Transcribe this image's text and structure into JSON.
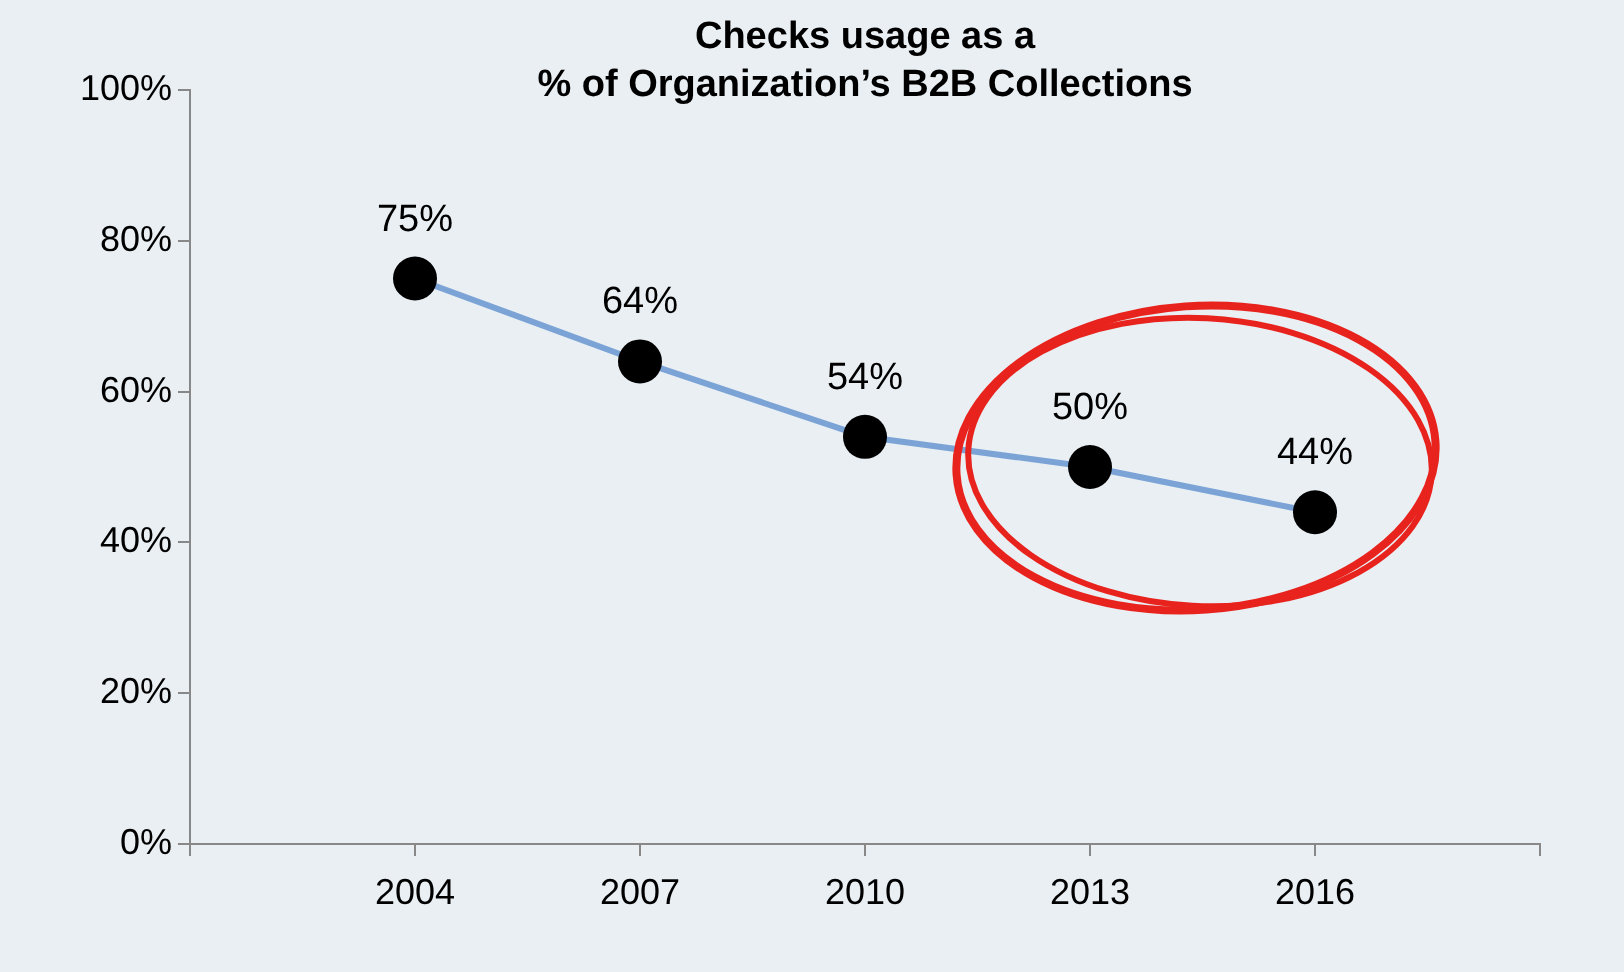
{
  "chart_data": {
    "type": "line",
    "title": "Checks usage as a\n% of Organization’s B2B Collections",
    "categories": [
      null,
      "2004",
      "2007",
      "2010",
      "2013",
      "2016",
      null
    ],
    "series": [
      {
        "color": "#7ba3d6",
        "values": [
          null,
          75,
          64,
          54,
          50,
          44,
          null
        ],
        "value_labels": [
          null,
          "75%",
          "64%",
          "54%",
          "50%",
          "44%",
          null
        ]
      }
    ],
    "ylim": [
      0,
      100
    ],
    "yticks": [
      {
        "value": 0,
        "label": "0%"
      },
      {
        "value": 20,
        "label": "20%"
      },
      {
        "value": 40,
        "label": "40%"
      },
      {
        "value": 60,
        "label": "60%"
      },
      {
        "value": 80,
        "label": "80%"
      },
      {
        "value": 100,
        "label": "100%"
      }
    ],
    "grid": false,
    "legend": false,
    "marker": "circle",
    "line_style": "solid"
  }
}
